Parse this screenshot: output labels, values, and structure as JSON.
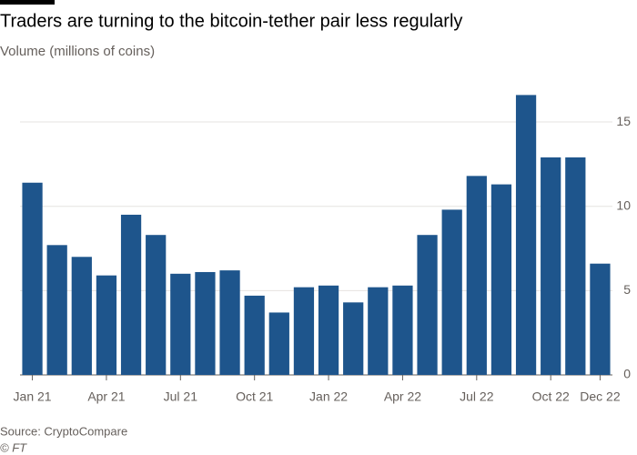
{
  "chart_data": {
    "type": "bar",
    "title": "Traders are turning to the bitcoin-tether pair less regularly",
    "subtitle": "Volume (millions of coins)",
    "source": "Source: CryptoCompare",
    "credit": "© FT",
    "categories": [
      "Jan 21",
      null,
      null,
      "Apr 21",
      null,
      null,
      "Jul 21",
      null,
      null,
      "Oct 21",
      null,
      null,
      "Jan 22",
      null,
      null,
      "Apr 22",
      null,
      null,
      "Jul 22",
      null,
      null,
      "Oct 22",
      null,
      "Dec 22"
    ],
    "values": [
      11.4,
      7.7,
      7.0,
      5.9,
      9.5,
      8.3,
      6.0,
      6.1,
      6.2,
      4.7,
      3.7,
      5.2,
      5.3,
      4.3,
      5.2,
      5.3,
      8.3,
      9.8,
      11.8,
      11.3,
      16.6,
      12.9,
      12.9,
      6.6
    ],
    "color": "#1e558c",
    "ylim": [
      0,
      17.5
    ],
    "yticks": [
      0,
      5,
      10,
      15
    ],
    "grid": true
  }
}
